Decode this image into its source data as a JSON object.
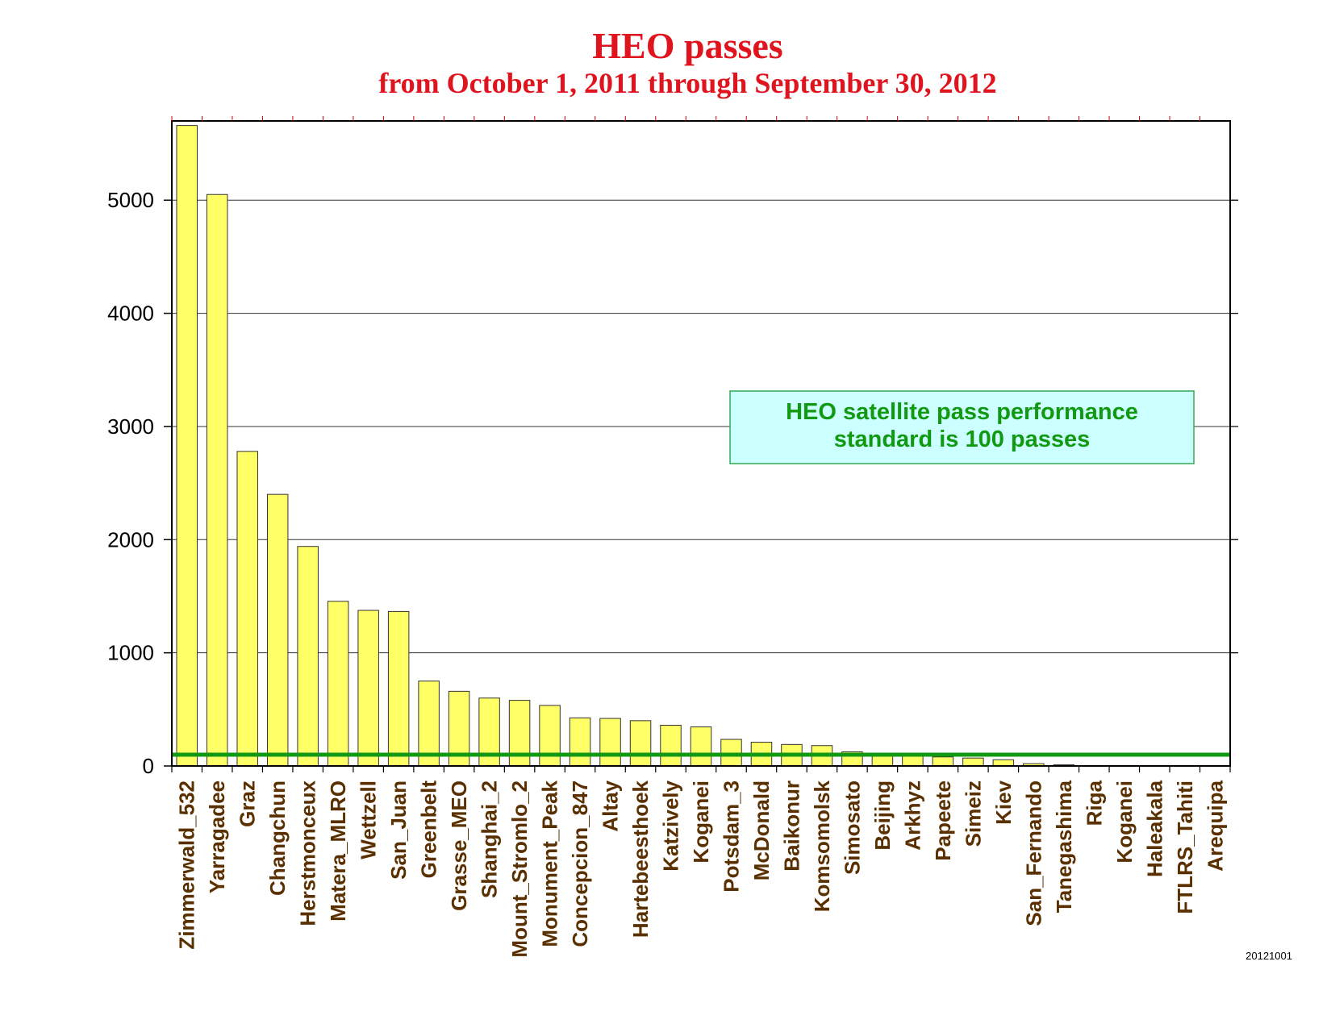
{
  "chart_data": {
    "type": "bar",
    "title": "HEO passes",
    "subtitle": "from October 1, 2011 through September 30, 2012",
    "xlabel": "",
    "ylabel": "",
    "ylim": [
      0,
      5700
    ],
    "yticks": [
      0,
      1000,
      2000,
      3000,
      4000,
      5000
    ],
    "grid": true,
    "categories": [
      "Zimmerwald_532",
      "Yarragadee",
      "Graz",
      "Changchun",
      "Herstmonceux",
      "Matera_MLRO",
      "Wettzell",
      "San_Juan",
      "Greenbelt",
      "Grasse_MEO",
      "Shanghai_2",
      "Mount_Stromlo_2",
      "Monument_Peak",
      "Concepcion_847",
      "Altay",
      "Hartebeesthoek",
      "Katzively",
      "Koganei",
      "Potsdam_3",
      "McDonald",
      "Baikonur",
      "Komsomolsk",
      "Simosato",
      "Beijing",
      "Arkhyz",
      "Papeete",
      "Simeiz",
      "Kiev",
      "San_Fernando",
      "Tanegashima",
      "Riga",
      "Koganei",
      "Haleakala",
      "FTLRS_Tahiti",
      "Arequipa"
    ],
    "values": [
      5660,
      5050,
      2780,
      2400,
      1940,
      1455,
      1375,
      1365,
      750,
      660,
      600,
      580,
      535,
      425,
      420,
      400,
      360,
      345,
      235,
      210,
      190,
      180,
      125,
      105,
      100,
      80,
      70,
      55,
      20,
      10,
      0,
      0,
      0,
      0,
      0
    ],
    "reference_line": {
      "value": 100
    },
    "annotation": "HEO satellite pass performance standard is 100 passes",
    "colors": {
      "bar_fill": "#ffff66",
      "bar_stroke": "#333333",
      "reference_line": "#119911",
      "annotation_bg": "#ccffff",
      "annotation_border": "#33aa55",
      "annotation_text": "#119911",
      "title": "#e0141e",
      "category_label": "#5a3000"
    }
  },
  "footer": {
    "stamp": "20121001"
  }
}
